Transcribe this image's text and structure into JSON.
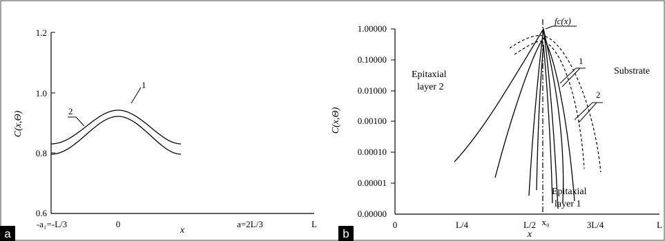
{
  "chart_data": [
    {
      "panel_label": "a",
      "type": "line",
      "xlabel": "x",
      "ylabel": "C(x,Θ)",
      "ylim": [
        0.6,
        1.2
      ],
      "x_tick_labels": [
        "-a₁=-L/3",
        "0",
        "a=2L/3",
        "L"
      ],
      "y_tick_labels": [
        "0.6",
        "0.8",
        "1.0",
        "1.2"
      ],
      "series": [
        {
          "name": "1",
          "x": [
            -0.333,
            -0.25,
            -0.167,
            -0.083,
            0,
            0.083,
            0.167,
            0.25,
            0.333
          ],
          "values": [
            0.82,
            0.86,
            0.91,
            0.97,
            1.005,
            0.97,
            0.91,
            0.86,
            0.82
          ]
        },
        {
          "name": "2",
          "x": [
            -0.333,
            -0.25,
            -0.167,
            -0.083,
            0,
            0.083,
            0.167,
            0.25,
            0.333
          ],
          "values": [
            0.785,
            0.83,
            0.895,
            0.95,
            0.975,
            0.95,
            0.895,
            0.83,
            0.785
          ]
        }
      ]
    },
    {
      "panel_label": "b",
      "type": "line",
      "yscale": "log",
      "xlabel": "x",
      "ylabel": "C(x,Θ)",
      "x_tick_labels": [
        "0",
        "L/4",
        "L/2",
        "x₀",
        "3L/4",
        "L"
      ],
      "y_tick_labels": [
        "0.00000",
        "0.00001",
        "0.00010",
        "0.00100",
        "0.01000",
        "0.10000",
        "1.00000"
      ],
      "annotations": [
        "Epitaxial layer 2",
        "Substrate",
        "Epitaxial layer 1",
        "fc(x)",
        "1",
        "2"
      ],
      "series": [
        {
          "name": "fc(x)",
          "x": [
            0.52,
            0.555,
            0.58,
            0.59,
            0.61,
            0.63,
            0.66
          ],
          "values": [
            1.5e-05,
            0.01,
            0.3,
            1.0,
            0.2,
            0.02,
            2e-05
          ]
        },
        {
          "name": "1",
          "x": [
            0.28,
            0.4,
            0.5,
            0.56,
            0.59,
            0.63,
            0.68,
            0.73,
            0.78
          ],
          "values": [
            5e-05,
            0.003,
            0.05,
            0.3,
            0.5,
            0.2,
            0.02,
            0.001,
            5e-05
          ]
        },
        {
          "name": "2",
          "x": [
            0.55,
            0.59,
            0.64,
            0.7,
            0.76,
            0.8
          ],
          "values": [
            0.15,
            0.3,
            0.15,
            0.02,
            0.001,
            2e-05
          ]
        }
      ]
    }
  ]
}
